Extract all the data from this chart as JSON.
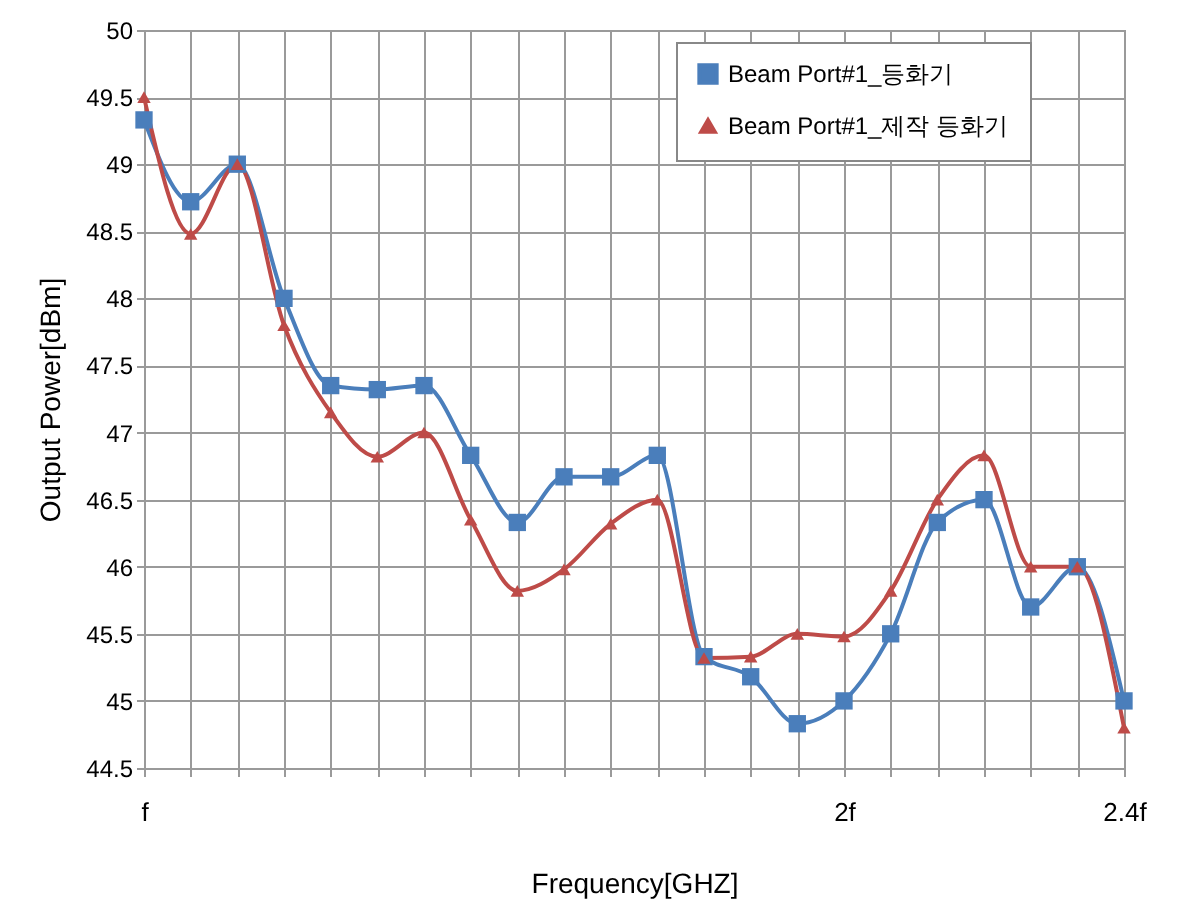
{
  "chart_data": {
    "type": "line",
    "xlabel": "Frequency[GHZ]",
    "ylabel": "Output Power[dBm]",
    "x": [
      1,
      1.0667,
      1.1333,
      1.2,
      1.2667,
      1.3333,
      1.4,
      1.4667,
      1.5333,
      1.6,
      1.6667,
      1.7333,
      1.8,
      1.8667,
      1.9333,
      2,
      2.0667,
      2.1333,
      2.2,
      2.2667,
      2.3333,
      2.4
    ],
    "xlim": [
      1,
      2.4
    ],
    "xticks": [
      {
        "value": 1,
        "label": "f"
      },
      {
        "value": 1.0667,
        "label": null
      },
      {
        "value": 1.1333,
        "label": null
      },
      {
        "value": 1.2,
        "label": null
      },
      {
        "value": 1.2667,
        "label": null
      },
      {
        "value": 1.3333,
        "label": null
      },
      {
        "value": 1.4,
        "label": null
      },
      {
        "value": 1.4667,
        "label": null
      },
      {
        "value": 1.5333,
        "label": null
      },
      {
        "value": 1.6,
        "label": null
      },
      {
        "value": 1.6667,
        "label": null
      },
      {
        "value": 1.7333,
        "label": null
      },
      {
        "value": 1.8,
        "label": null
      },
      {
        "value": 1.8667,
        "label": null
      },
      {
        "value": 1.9333,
        "label": null
      },
      {
        "value": 2,
        "label": "2f"
      },
      {
        "value": 2.0667,
        "label": null
      },
      {
        "value": 2.1333,
        "label": null
      },
      {
        "value": 2.2,
        "label": null
      },
      {
        "value": 2.2667,
        "label": null
      },
      {
        "value": 2.3333,
        "label": null
      },
      {
        "value": 2.4,
        "label": "2.4f"
      }
    ],
    "ylim": [
      44.5,
      50
    ],
    "yticks": [
      44.5,
      45,
      45.5,
      46,
      46.5,
      47,
      47.5,
      48,
      48.5,
      49,
      49.5,
      50
    ],
    "grid": true,
    "legend": "top right",
    "series": [
      {
        "name": "Beam Port#1_등화기",
        "color": "#4a7ebb",
        "marker": "square",
        "values": [
          49.33,
          48.72,
          49.0,
          48.0,
          47.35,
          47.32,
          47.35,
          46.83,
          46.33,
          46.67,
          46.67,
          46.83,
          45.33,
          45.18,
          44.83,
          45.0,
          45.5,
          46.33,
          46.5,
          45.7,
          46.0,
          45.0
        ]
      },
      {
        "name": "Beam Port#1_제작 등화기",
        "color": "#be4b48",
        "marker": "triangle",
        "values": [
          49.5,
          48.48,
          49.0,
          47.8,
          47.15,
          46.82,
          47.0,
          46.35,
          45.82,
          45.98,
          46.32,
          46.5,
          45.32,
          45.33,
          45.5,
          45.48,
          45.82,
          46.5,
          46.83,
          46.0,
          46.0,
          44.8
        ]
      }
    ]
  }
}
